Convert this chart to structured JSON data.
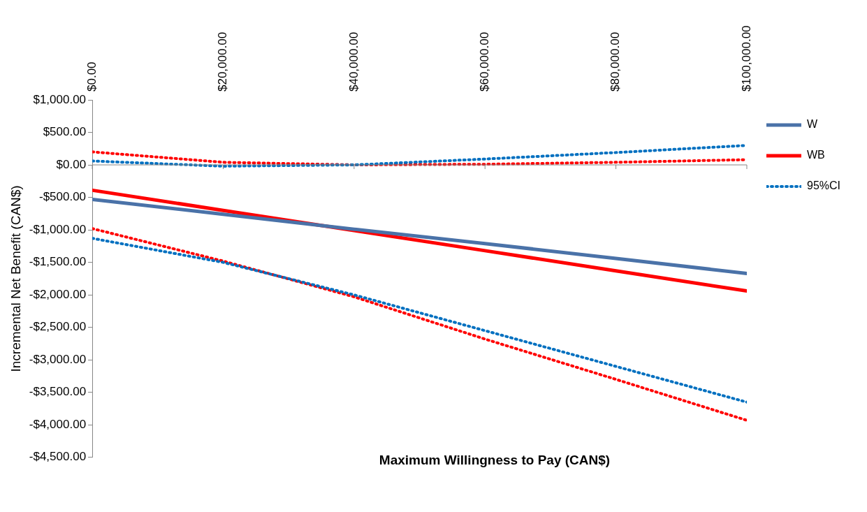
{
  "chart_data": {
    "type": "line",
    "xlabel": "Maximum Willingness to Pay (CAN$)",
    "ylabel": "Incremental Net Benefit (CAN$)",
    "x": [
      0,
      20000,
      40000,
      60000,
      80000,
      100000
    ],
    "series": [
      {
        "name": "W",
        "color": "#4a72a8",
        "values": [
          -530,
          -760,
          -990,
          -1210,
          -1440,
          -1670
        ]
      },
      {
        "name": "WB",
        "color": "#ff0000",
        "values": [
          -390,
          -700,
          -1010,
          -1320,
          -1630,
          -1940
        ]
      },
      {
        "name": "95%CI",
        "color": "#0070c0",
        "line_style": "dotted",
        "values": [
          60,
          -20,
          0,
          90,
          190,
          300
        ]
      },
      {
        "color": "#ff0000",
        "line_style": "dotted",
        "values": [
          200,
          40,
          0,
          10,
          40,
          80
        ]
      },
      {
        "color": "#0070c0",
        "line_style": "dotted",
        "values": [
          -1130,
          -1500,
          -2000,
          -2550,
          -3100,
          -3650
        ]
      },
      {
        "color": "#ff0000",
        "line_style": "dotted",
        "values": [
          -980,
          -1480,
          -2030,
          -2680,
          -3300,
          -3930
        ]
      }
    ],
    "xlim": [
      0,
      100000
    ],
    "xticks": [
      {
        "value": 0,
        "label": "$0.00"
      },
      {
        "value": 20000,
        "label": "$20,000.00"
      },
      {
        "value": 40000,
        "label": "$40,000.00"
      },
      {
        "value": 60000,
        "label": "$60,000.00"
      },
      {
        "value": 80000,
        "label": "$80,000.00"
      },
      {
        "value": 100000,
        "label": "$100,000.00"
      }
    ],
    "ylim": [
      -4500,
      1000
    ],
    "yticks": [
      {
        "value": 1000,
        "label": "$1,000.00"
      },
      {
        "value": 500,
        "label": "$500.00"
      },
      {
        "value": 0,
        "label": "$0.00"
      },
      {
        "value": -500,
        "label": "-$500.00"
      },
      {
        "value": -1000,
        "label": "-$1,000.00"
      },
      {
        "value": -1500,
        "label": "-$1,500.00"
      },
      {
        "value": -2000,
        "label": "-$2,000.00"
      },
      {
        "value": -2500,
        "label": "-$2,500.00"
      },
      {
        "value": -3000,
        "label": "-$3,000.00"
      },
      {
        "value": -3500,
        "label": "-$3,500.00"
      },
      {
        "value": -4000,
        "label": "-$4,000.00"
      },
      {
        "value": -4500,
        "label": "-$4,500.00"
      }
    ],
    "legend": "right",
    "marker": "none"
  }
}
